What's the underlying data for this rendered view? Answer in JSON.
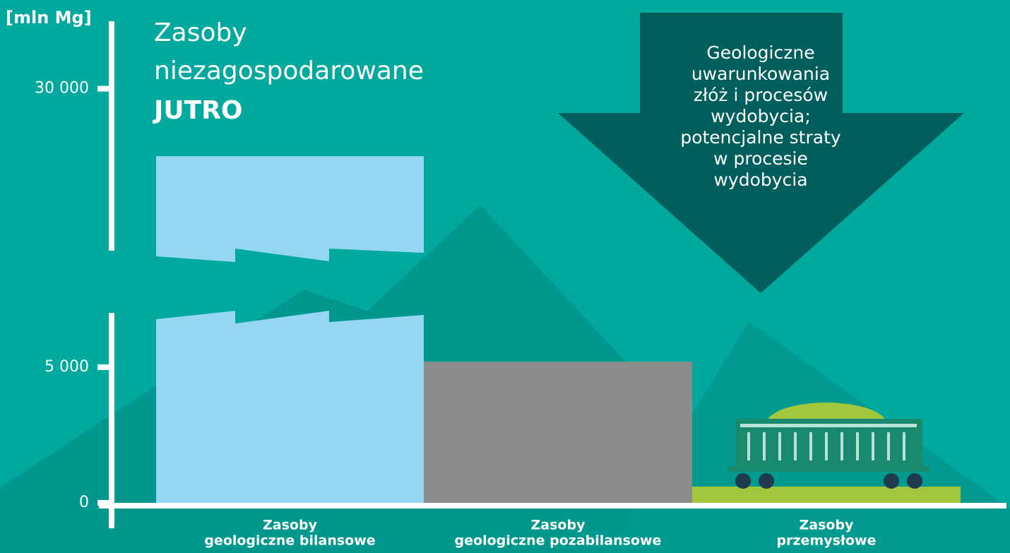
{
  "chart_data": {
    "type": "bar",
    "title": [
      "Zasoby",
      "niezagospodarowane"
    ],
    "subtitle": "JUTRO",
    "y_label": "[mln Mg]",
    "annotation": [
      "Geologiczne",
      "uwarunkowania",
      "złóż i procesów",
      "wydobycia;",
      "potencjalne straty",
      "w procesie",
      "wydobycia"
    ],
    "categories": [
      [
        "Zasoby",
        "geologiczne bilansowe"
      ],
      [
        "Zasoby",
        "geologiczne pozabilansowe"
      ],
      [
        "Zasoby",
        "przemysłowe"
      ]
    ],
    "values": [
      27500,
      5200,
      600
    ],
    "colors": [
      "#93d7f5",
      "#8c8c8c",
      "#a2c73c"
    ],
    "ylim": [
      0,
      32500
    ],
    "axis_break": [
      7000,
      24000
    ],
    "yticks": [
      0,
      {
        "value": 5000,
        "label": "5 000"
      },
      {
        "value": 30000,
        "label": "30 000"
      }
    ]
  }
}
